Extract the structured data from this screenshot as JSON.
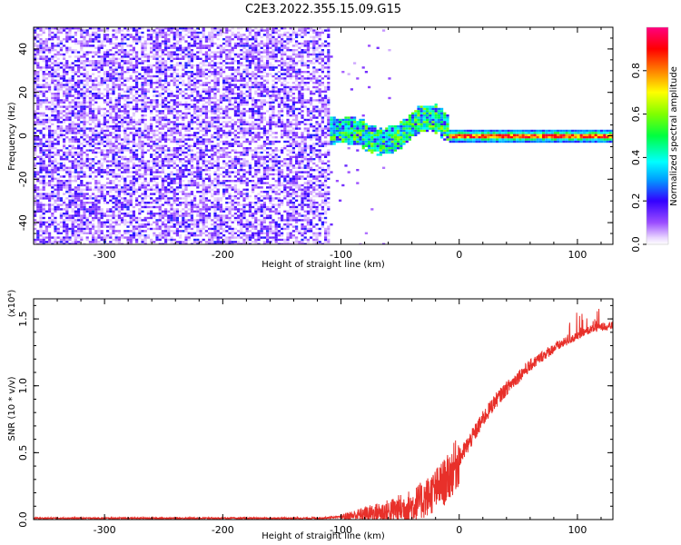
{
  "title": "C2E3.2022.355.15.09.G15",
  "chart_data": [
    {
      "type": "heatmap",
      "xlabel": "Height of straight line (km)",
      "ylabel": "Frequency (Hz)",
      "xlim": [
        -360,
        130
      ],
      "ylim": [
        -50,
        50
      ],
      "xticks": [
        -300,
        -200,
        -100,
        0,
        100
      ],
      "yticks": [
        -40,
        -20,
        0,
        20,
        40
      ],
      "description_regions": {
        "noise": {
          "x": [
            -360,
            -110
          ],
          "y": [
            -50,
            50
          ],
          "amplitude": [
            0.0,
            0.3
          ]
        },
        "transition": {
          "x": [
            -110,
            -10
          ],
          "center_hz": [
            2,
            -5,
            4,
            0
          ],
          "half_width_hz": 5,
          "amplitude": [
            0.2,
            0.7
          ]
        },
        "line": {
          "x": [
            -10,
            130
          ],
          "center_hz": 0,
          "half_width_hz": 3,
          "amplitude": [
            0.4,
            1.0
          ]
        }
      },
      "colorbar": {
        "label": "Normalized spectral amplitude",
        "range": [
          0,
          1
        ],
        "ticks": [
          0.0,
          0.2,
          0.4,
          0.6,
          0.8
        ],
        "tick_labels": [
          "0.0",
          "0.2",
          "0.4",
          "0.6",
          "0.8"
        ]
      }
    },
    {
      "type": "line",
      "xlabel": "Height of straight line (km)",
      "ylabel": "SNR (10 * v/v)",
      "yscale_label": "(x10⁴)",
      "xlim": [
        -360,
        130
      ],
      "ylim": [
        0,
        1.65
      ],
      "xticks": [
        -300,
        -200,
        -100,
        0,
        100
      ],
      "yticks": [
        0.0,
        0.5,
        1.0,
        1.5
      ],
      "ytick_labels": [
        "0.0",
        "0.5",
        "1.0",
        "1.5"
      ],
      "color": "#e8302a",
      "series": [
        {
          "x": [
            -360,
            -300,
            -200,
            -120,
            -100,
            -80,
            -60,
            -40,
            -30,
            -20,
            -10,
            0,
            10,
            20,
            30,
            40,
            50,
            60,
            70,
            80,
            90,
            100,
            110,
            120,
            130
          ],
          "values": [
            0.01,
            0.01,
            0.01,
            0.01,
            0.02,
            0.04,
            0.06,
            0.1,
            0.15,
            0.22,
            0.3,
            0.45,
            0.6,
            0.75,
            0.88,
            0.98,
            1.07,
            1.15,
            1.22,
            1.28,
            1.33,
            1.37,
            1.42,
            1.44,
            1.45
          ]
        }
      ]
    }
  ]
}
